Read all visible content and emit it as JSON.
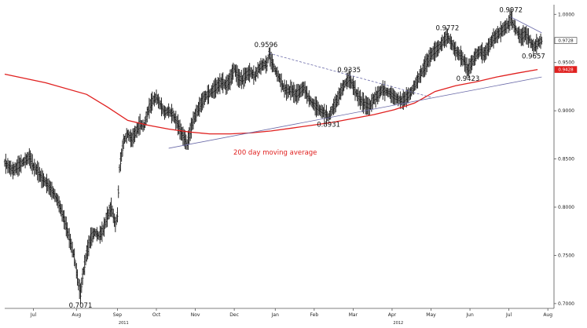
{
  "chart_data": {
    "type": "line",
    "series": [
      {
        "values": [
          [
            0,
            0.846
          ],
          [
            2,
            0.838
          ],
          [
            4,
            0.845
          ],
          [
            6,
            0.852
          ],
          [
            7,
            0.842
          ],
          [
            8,
            0.838
          ],
          [
            9,
            0.83
          ],
          [
            10,
            0.826
          ],
          [
            11,
            0.82
          ],
          [
            12,
            0.814
          ],
          [
            13,
            0.806
          ],
          [
            14,
            0.794
          ],
          [
            15,
            0.78
          ],
          [
            16,
            0.764
          ],
          [
            17,
            0.748
          ],
          [
            18,
            0.72
          ],
          [
            18.5,
            0.71
          ],
          [
            19,
            0.728
          ],
          [
            20,
            0.752
          ],
          [
            21,
            0.768
          ],
          [
            22,
            0.774
          ],
          [
            23,
            0.77
          ],
          [
            24,
            0.776
          ],
          [
            25,
            0.79
          ],
          [
            26,
            0.8
          ],
          [
            27,
            0.782
          ],
          [
            27.5,
            0.792
          ],
          [
            28,
            0.84
          ],
          [
            29,
            0.868
          ],
          [
            30,
            0.876
          ],
          [
            31,
            0.87
          ],
          [
            32,
            0.878
          ],
          [
            33,
            0.886
          ],
          [
            34,
            0.884
          ],
          [
            35,
            0.9
          ],
          [
            36,
            0.91
          ],
          [
            37,
            0.914
          ],
          [
            38,
            0.906
          ],
          [
            39,
            0.898
          ],
          [
            40,
            0.9
          ],
          [
            41,
            0.896
          ],
          [
            42,
            0.888
          ],
          [
            43,
            0.878
          ],
          [
            44,
            0.87
          ],
          [
            44.5,
            0.865
          ],
          [
            45,
            0.874
          ],
          [
            46,
            0.89
          ],
          [
            47,
            0.9
          ],
          [
            48,
            0.908
          ],
          [
            49,
            0.915
          ],
          [
            50,
            0.918
          ],
          [
            51,
            0.922
          ],
          [
            52,
            0.926
          ],
          [
            53,
            0.93
          ],
          [
            54,
            0.926
          ],
          [
            55,
            0.932
          ],
          [
            56,
            0.944
          ],
          [
            57,
            0.934
          ],
          [
            58,
            0.932
          ],
          [
            59,
            0.938
          ],
          [
            60,
            0.94
          ],
          [
            61,
            0.936
          ],
          [
            62,
            0.944
          ],
          [
            63,
            0.948
          ],
          [
            64,
            0.948
          ],
          [
            64.5,
            0.9596
          ],
          [
            65,
            0.952
          ],
          [
            66,
            0.942
          ],
          [
            67,
            0.934
          ],
          [
            68,
            0.924
          ],
          [
            69,
            0.92
          ],
          [
            70,
            0.922
          ],
          [
            71,
            0.916
          ],
          [
            72,
            0.92
          ],
          [
            73,
            0.924
          ],
          [
            74,
            0.914
          ],
          [
            75,
            0.908
          ],
          [
            76,
            0.904
          ],
          [
            77,
            0.9
          ],
          [
            78,
            0.898
          ],
          [
            79,
            0.8931
          ],
          [
            80,
            0.902
          ],
          [
            81,
            0.91
          ],
          [
            82,
            0.92
          ],
          [
            83,
            0.928
          ],
          [
            84,
            0.9335
          ],
          [
            85,
            0.926
          ],
          [
            86,
            0.916
          ],
          [
            87,
            0.91
          ],
          [
            88,
            0.906
          ],
          [
            89,
            0.904
          ],
          [
            90,
            0.912
          ],
          [
            91,
            0.916
          ],
          [
            92,
            0.922
          ],
          [
            93,
            0.92
          ],
          [
            94,
            0.918
          ],
          [
            95,
            0.914
          ],
          [
            96,
            0.912
          ],
          [
            97,
            0.91
          ],
          [
            98,
            0.914
          ],
          [
            99,
            0.918
          ],
          [
            100,
            0.926
          ],
          [
            101,
            0.934
          ],
          [
            102,
            0.942
          ],
          [
            103,
            0.95
          ],
          [
            104,
            0.958
          ],
          [
            105,
            0.962
          ],
          [
            106,
            0.966
          ],
          [
            107,
            0.972
          ],
          [
            108,
            0.9772
          ],
          [
            109,
            0.97
          ],
          [
            110,
            0.962
          ],
          [
            111,
            0.958
          ],
          [
            112,
            0.952
          ],
          [
            113,
            0.9423
          ],
          [
            114,
            0.95
          ],
          [
            115,
            0.958
          ],
          [
            116,
            0.962
          ],
          [
            117,
            0.958
          ],
          [
            118,
            0.966
          ],
          [
            119,
            0.974
          ],
          [
            120,
            0.978
          ],
          [
            121,
            0.982
          ],
          [
            122,
            0.986
          ],
          [
            123,
            0.99
          ],
          [
            123.5,
            0.9972
          ],
          [
            124,
            0.99
          ],
          [
            125,
            0.982
          ],
          [
            126,
            0.976
          ],
          [
            127,
            0.98
          ],
          [
            128,
            0.974
          ],
          [
            129,
            0.9657
          ],
          [
            130,
            0.97
          ],
          [
            131,
            0.9728
          ]
        ]
      }
    ],
    "moving_average": {
      "label": "200 day moving average",
      "values": [
        [
          0,
          0.938
        ],
        [
          10,
          0.929
        ],
        [
          20,
          0.917
        ],
        [
          25,
          0.904
        ],
        [
          30,
          0.89
        ],
        [
          35,
          0.885
        ],
        [
          40,
          0.881
        ],
        [
          45,
          0.878
        ],
        [
          50,
          0.876
        ],
        [
          55,
          0.876
        ],
        [
          60,
          0.877
        ],
        [
          65,
          0.879
        ],
        [
          70,
          0.882
        ],
        [
          75,
          0.885
        ],
        [
          80,
          0.888
        ],
        [
          85,
          0.892
        ],
        [
          90,
          0.896
        ],
        [
          95,
          0.901
        ],
        [
          100,
          0.908
        ],
        [
          105,
          0.92
        ],
        [
          110,
          0.926
        ],
        [
          115,
          0.93
        ],
        [
          120,
          0.935
        ],
        [
          125,
          0.939
        ],
        [
          130,
          0.9428
        ]
      ]
    },
    "trendlines": [
      {
        "style": "solid",
        "from": [
          40,
          0.8611
        ],
        "to": [
          131,
          0.935
        ]
      },
      {
        "style": "dashed",
        "from": [
          64.5,
          0.9596
        ],
        "to": [
          104,
          0.914
        ]
      },
      {
        "style": "solid",
        "from": [
          123.5,
          0.9972
        ],
        "to": [
          131,
          0.9808
        ]
      }
    ],
    "annotations": [
      {
        "text": "0.7071",
        "x": 18.5,
        "y": 0.7071
      },
      {
        "text": "0.9596",
        "x": 64.5,
        "y": 0.9596
      },
      {
        "text": "0.9335",
        "x": 84,
        "y": 0.9335
      },
      {
        "text": "0.8931",
        "x": 79,
        "y": 0.8931
      },
      {
        "text": "0.9772",
        "x": 108,
        "y": 0.9772
      },
      {
        "text": "0.9423",
        "x": 113,
        "y": 0.9423
      },
      {
        "text": "0.9972",
        "x": 123.5,
        "y": 0.9972
      },
      {
        "text": "0.9657",
        "x": 129,
        "y": 0.9657
      }
    ],
    "y_ticks": [
      "1.0000",
      "0.9500",
      "0.9000",
      "0.8500",
      "0.8000",
      "0.7500",
      "0.7000"
    ],
    "y_tick_values": [
      1.0,
      0.95,
      0.9,
      0.85,
      0.8,
      0.75,
      0.7
    ],
    "x_ticks": [
      "Jul",
      "Aug",
      "Sep",
      "Oct",
      "Nov",
      "Dec",
      "Jan",
      "Feb",
      "Mar",
      "Apr",
      "May",
      "Jun",
      "Jul",
      "Aug"
    ],
    "x_tick_positions": [
      7,
      17.5,
      27.5,
      37,
      46.5,
      56,
      66,
      75.5,
      85,
      94.5,
      104,
      113.5,
      123,
      132.5
    ],
    "year_labels": [
      {
        "text": "2011",
        "x": 29
      },
      {
        "text": "2012",
        "x": 96
      }
    ],
    "price_boxes": [
      {
        "text": "0.9728",
        "y": 0.9728,
        "color": "#ffffff",
        "text_color": "#111111"
      },
      {
        "text": "0.9428",
        "y": 0.9428,
        "color": "#e0201f",
        "text_color": "#ffffff"
      }
    ],
    "ylim": [
      0.695,
      1.01
    ],
    "xlim": [
      0,
      134
    ],
    "colors": {
      "ma": "#e0201f",
      "trend": "#6a6aa8",
      "price": "#111111"
    }
  }
}
